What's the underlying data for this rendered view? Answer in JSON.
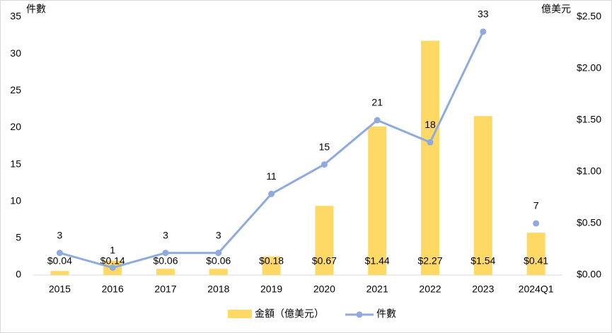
{
  "chart_data": {
    "type": "bar-line",
    "y_axis_label": "件數",
    "y2_axis_label": "億美元",
    "categories": [
      "2015",
      "2016",
      "2017",
      "2018",
      "2019",
      "2020",
      "2021",
      "2022",
      "2023",
      "2024Q1"
    ],
    "series": [
      {
        "name": "金額（億美元）",
        "type": "bar",
        "axis": "y2",
        "color": "#ffd966",
        "values": [
          0.04,
          0.14,
          0.06,
          0.06,
          0.18,
          0.67,
          1.44,
          2.27,
          1.54,
          0.41
        ],
        "value_labels": [
          "$0.04",
          "$0.14",
          "$0.06",
          "$0.06",
          "$0.18",
          "$0.67",
          "$1.44",
          "$2.27",
          "$1.54",
          "$0.41"
        ]
      },
      {
        "name": "件數",
        "type": "line",
        "color": "#8faadc",
        "values": [
          3,
          1,
          3,
          3,
          11,
          15,
          21,
          18,
          33,
          7
        ]
      }
    ],
    "ylim": [
      0,
      35
    ],
    "yticks": [
      0,
      5,
      10,
      15,
      20,
      25,
      30,
      35
    ],
    "y2lim": [
      0,
      2.5
    ],
    "y2ticks": [
      {
        "value": 0,
        "label": "$0.00"
      },
      {
        "value": 0.5,
        "label": "$0.50"
      },
      {
        "value": 1,
        "label": "$1.00"
      },
      {
        "value": 1.5,
        "label": "$1.50"
      },
      {
        "value": 2,
        "label": "$2.00"
      },
      {
        "value": 2.5,
        "label": "$2.50"
      }
    ],
    "grid": false
  }
}
